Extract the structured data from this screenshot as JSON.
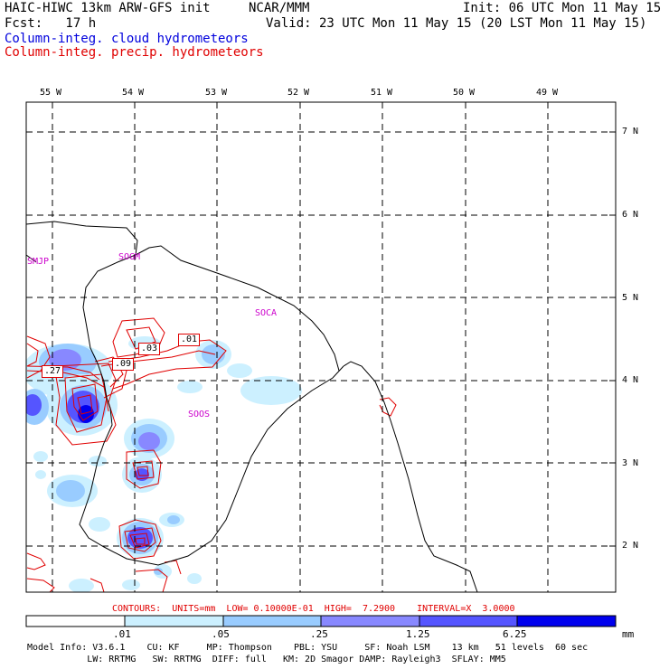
{
  "header": {
    "model": "HAIC-HIWC 13km ARW-GFS init",
    "org": "NCAR/MMM",
    "init": "Init: 06 UTC Mon 11 May 15",
    "fcst": "Fcst:   17 h",
    "valid": "Valid: 23 UTC Mon 11 May 15 (20 LST Mon 11 May 15)",
    "field1": "Column-integ. cloud hydrometeors",
    "field2": "Column-integ. precip. hydrometeors"
  },
  "colors": {
    "cloud": "#0000dd",
    "precip": "#e00000",
    "station": "#cc00cc"
  },
  "lon_labels": [
    "55 W",
    "54 W",
    "53 W",
    "52 W",
    "51 W",
    "50 W",
    "49 W"
  ],
  "lat_labels": [
    "7 N",
    "6 N",
    "5 N",
    "4 N",
    "3 N",
    "2 N"
  ],
  "stations": [
    "SMJP",
    "SOGM",
    "SOCA",
    "SOOS"
  ],
  "contour_labels": [
    ".01",
    ".03",
    ".09",
    ".27"
  ],
  "contours_line": "CONTOURS:  UNITS=mm  LOW= 0.10000E-01  HIGH=  7.2900    INTERVAL=X  3.0000",
  "colorbar": {
    "labels": [
      ".01",
      ".05",
      ".25",
      "1.25",
      "6.25"
    ],
    "unit": "mm",
    "colors": [
      "#ffffff",
      "#ccf0ff",
      "#99ccff",
      "#8888ff",
      "#5555ff",
      "#0000ee"
    ]
  },
  "footer": {
    "line1": "Model Info: V3.6.1    CU: KF     MP: Thompson    PBL: YSU     SF: Noah LSM    13 km   51 levels  60 sec",
    "line2": "           LW: RRTMG   SW: RRTMG  DIFF: full   KM: 2D Smagor DAMP: Rayleigh3  SFLAY: MM5"
  }
}
